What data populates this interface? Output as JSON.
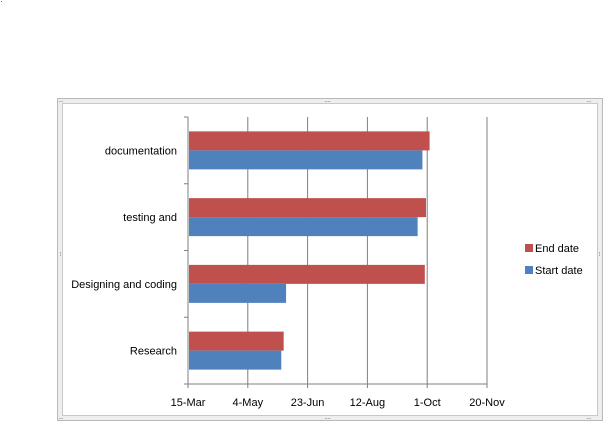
{
  "chart_data": {
    "type": "bar",
    "orientation": "horizontal",
    "stacked": false,
    "categories": [
      "Research",
      "Designing and coding",
      "testing and",
      "documentation"
    ],
    "series": [
      {
        "name": "Start date",
        "color": "#4f81bd",
        "values": [
          "2015-06-01",
          "2015-06-05",
          "2015-09-23",
          "2015-09-27"
        ]
      },
      {
        "name": "End date",
        "color": "#c0504d",
        "values": [
          "2015-06-03",
          "2015-09-29",
          "2015-09-30",
          "2015-10-03"
        ]
      }
    ],
    "x_ticks": [
      "15-Mar",
      "4-May",
      "23-Jun",
      "12-Aug",
      "1-Oct",
      "20-Nov"
    ],
    "xlim": [
      "2015-03-15",
      "2015-11-20"
    ],
    "grid": true,
    "legend": "right"
  },
  "colors": {
    "start": "#4f81bd",
    "end": "#c0504d",
    "grid": "#7f7f7f",
    "frame": "#b9b9b9"
  }
}
